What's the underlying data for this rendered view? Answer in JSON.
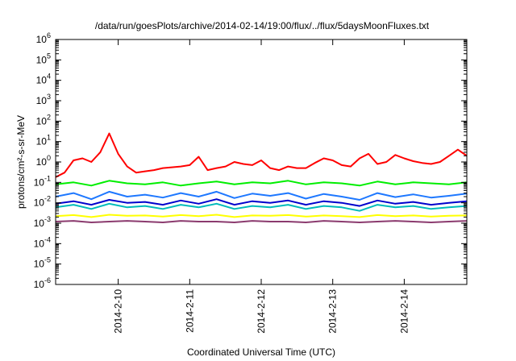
{
  "chart_data": {
    "type": "line",
    "title": "/data/run/goesPlots/archive/2014-02-14/19:00/flux/../flux/5daysMoonFluxes.txt",
    "xlabel": "Coordinated Universal Time (UTC)",
    "ylabel": "protons/cm²-s-sr-MeV",
    "y_scale": "log",
    "ylim_exponents": [
      -6,
      6
    ],
    "x_range": [
      "2014-02-09 03:00",
      "2014-02-14 21:00"
    ],
    "x_ticks": [
      "2014-2-10",
      "2014-2-11",
      "2014-2-12",
      "2014-2-13",
      "2014-2-14"
    ],
    "y_tick_exponents": [
      -6,
      -5,
      -4,
      -3,
      -2,
      -1,
      0,
      1,
      2,
      3,
      4,
      5,
      6
    ],
    "grid": false,
    "legend": "none",
    "series": [
      {
        "color": "#ff0000",
        "x": [
          "2014-02-09 03:00",
          "2014-02-09 06:00",
          "2014-02-09 09:00",
          "2014-02-09 12:00",
          "2014-02-09 15:00",
          "2014-02-09 18:00",
          "2014-02-09 21:00",
          "2014-02-10 00:00",
          "2014-02-10 03:00",
          "2014-02-10 06:00",
          "2014-02-10 09:00",
          "2014-02-10 12:00",
          "2014-02-10 15:00",
          "2014-02-10 18:00",
          "2014-02-10 21:00",
          "2014-02-11 00:00",
          "2014-02-11 03:00",
          "2014-02-11 06:00",
          "2014-02-11 09:00",
          "2014-02-11 12:00",
          "2014-02-11 15:00",
          "2014-02-11 18:00",
          "2014-02-11 21:00",
          "2014-02-12 00:00",
          "2014-02-12 03:00",
          "2014-02-12 06:00",
          "2014-02-12 09:00",
          "2014-02-12 12:00",
          "2014-02-12 15:00",
          "2014-02-12 18:00",
          "2014-02-12 21:00",
          "2014-02-13 00:00",
          "2014-02-13 03:00",
          "2014-02-13 06:00",
          "2014-02-13 09:00",
          "2014-02-13 12:00",
          "2014-02-13 15:00",
          "2014-02-13 18:00",
          "2014-02-13 21:00",
          "2014-02-14 00:00",
          "2014-02-14 03:00",
          "2014-02-14 06:00",
          "2014-02-14 09:00",
          "2014-02-14 12:00",
          "2014-02-14 15:00",
          "2014-02-14 18:00",
          "2014-02-14 21:00"
        ],
        "y": [
          0.18,
          0.3,
          1.2,
          1.5,
          1.0,
          3.0,
          25,
          2.5,
          0.6,
          0.3,
          0.35,
          0.4,
          0.5,
          0.55,
          0.6,
          0.7,
          1.8,
          0.4,
          0.5,
          0.6,
          1.0,
          0.8,
          0.7,
          1.2,
          0.5,
          0.4,
          0.6,
          0.5,
          0.5,
          0.9,
          1.5,
          1.2,
          0.7,
          0.6,
          1.5,
          2.5,
          0.8,
          1.0,
          2.2,
          1.5,
          1.1,
          0.9,
          0.8,
          1.0,
          2.0,
          4.0,
          2.0
        ]
      },
      {
        "color": "#00ee00",
        "x": [
          "2014-02-09 03:00",
          "2014-02-09 09:00",
          "2014-02-09 15:00",
          "2014-02-09 21:00",
          "2014-02-10 03:00",
          "2014-02-10 09:00",
          "2014-02-10 15:00",
          "2014-02-10 21:00",
          "2014-02-11 03:00",
          "2014-02-11 09:00",
          "2014-02-11 15:00",
          "2014-02-11 21:00",
          "2014-02-12 03:00",
          "2014-02-12 09:00",
          "2014-02-12 15:00",
          "2014-02-12 21:00",
          "2014-02-13 03:00",
          "2014-02-13 09:00",
          "2014-02-13 15:00",
          "2014-02-13 21:00",
          "2014-02-14 03:00",
          "2014-02-14 09:00",
          "2014-02-14 15:00",
          "2014-02-14 21:00"
        ],
        "y": [
          0.08,
          0.1,
          0.07,
          0.12,
          0.09,
          0.08,
          0.1,
          0.07,
          0.09,
          0.11,
          0.08,
          0.1,
          0.09,
          0.12,
          0.08,
          0.1,
          0.09,
          0.07,
          0.11,
          0.08,
          0.1,
          0.09,
          0.08,
          0.1
        ]
      },
      {
        "color": "#00bbbb",
        "x": [
          "2014-02-09 03:00",
          "2014-02-09 09:00",
          "2014-02-09 15:00",
          "2014-02-09 21:00",
          "2014-02-10 03:00",
          "2014-02-10 09:00",
          "2014-02-10 15:00",
          "2014-02-10 21:00",
          "2014-02-11 03:00",
          "2014-02-11 09:00",
          "2014-02-11 15:00",
          "2014-02-11 21:00",
          "2014-02-12 03:00",
          "2014-02-12 09:00",
          "2014-02-12 15:00",
          "2014-02-12 21:00",
          "2014-02-13 03:00",
          "2014-02-13 09:00",
          "2014-02-13 15:00",
          "2014-02-13 21:00",
          "2014-02-14 03:00",
          "2014-02-14 09:00",
          "2014-02-14 15:00",
          "2014-02-14 21:00"
        ],
        "y": [
          0.006,
          0.008,
          0.005,
          0.009,
          0.006,
          0.007,
          0.005,
          0.008,
          0.006,
          0.009,
          0.005,
          0.007,
          0.006,
          0.008,
          0.005,
          0.007,
          0.006,
          0.004,
          0.008,
          0.006,
          0.007,
          0.005,
          0.006,
          0.007
        ]
      },
      {
        "color": "#1e78ff",
        "x": [
          "2014-02-09 03:00",
          "2014-02-09 09:00",
          "2014-02-09 15:00",
          "2014-02-09 21:00",
          "2014-02-10 03:00",
          "2014-02-10 09:00",
          "2014-02-10 15:00",
          "2014-02-10 21:00",
          "2014-02-11 03:00",
          "2014-02-11 09:00",
          "2014-02-11 15:00",
          "2014-02-11 21:00",
          "2014-02-12 03:00",
          "2014-02-12 09:00",
          "2014-02-12 15:00",
          "2014-02-12 21:00",
          "2014-02-13 03:00",
          "2014-02-13 09:00",
          "2014-02-13 15:00",
          "2014-02-13 21:00",
          "2014-02-14 03:00",
          "2014-02-14 09:00",
          "2014-02-14 15:00",
          "2014-02-14 21:00"
        ],
        "y": [
          0.02,
          0.03,
          0.015,
          0.035,
          0.02,
          0.025,
          0.018,
          0.03,
          0.02,
          0.035,
          0.017,
          0.028,
          0.022,
          0.03,
          0.016,
          0.027,
          0.02,
          0.014,
          0.03,
          0.019,
          0.026,
          0.018,
          0.022,
          0.028
        ]
      },
      {
        "color": "#0000cc",
        "x": [
          "2014-02-09 03:00",
          "2014-02-09 09:00",
          "2014-02-09 15:00",
          "2014-02-09 21:00",
          "2014-02-10 03:00",
          "2014-02-10 09:00",
          "2014-02-10 15:00",
          "2014-02-10 21:00",
          "2014-02-11 03:00",
          "2014-02-11 09:00",
          "2014-02-11 15:00",
          "2014-02-11 21:00",
          "2014-02-12 03:00",
          "2014-02-12 09:00",
          "2014-02-12 15:00",
          "2014-02-12 21:00",
          "2014-02-13 03:00",
          "2014-02-13 09:00",
          "2014-02-13 15:00",
          "2014-02-13 21:00",
          "2014-02-14 03:00",
          "2014-02-14 09:00",
          "2014-02-14 15:00",
          "2014-02-14 21:00"
        ],
        "y": [
          0.009,
          0.012,
          0.008,
          0.014,
          0.01,
          0.011,
          0.008,
          0.013,
          0.009,
          0.015,
          0.008,
          0.012,
          0.01,
          0.013,
          0.008,
          0.012,
          0.01,
          0.007,
          0.013,
          0.009,
          0.011,
          0.008,
          0.01,
          0.012
        ]
      },
      {
        "color": "#ffff00",
        "x": [
          "2014-02-09 03:00",
          "2014-02-09 09:00",
          "2014-02-09 15:00",
          "2014-02-09 21:00",
          "2014-02-10 03:00",
          "2014-02-10 09:00",
          "2014-02-10 15:00",
          "2014-02-10 21:00",
          "2014-02-11 03:00",
          "2014-02-11 09:00",
          "2014-02-11 15:00",
          "2014-02-11 21:00",
          "2014-02-12 03:00",
          "2014-02-12 09:00",
          "2014-02-12 15:00",
          "2014-02-12 21:00",
          "2014-02-13 03:00",
          "2014-02-13 09:00",
          "2014-02-13 15:00",
          "2014-02-13 21:00",
          "2014-02-14 03:00",
          "2014-02-14 09:00",
          "2014-02-14 15:00",
          "2014-02-14 21:00"
        ],
        "y": [
          0.0022,
          0.0025,
          0.002,
          0.0026,
          0.0023,
          0.0024,
          0.0021,
          0.0025,
          0.0022,
          0.0026,
          0.002,
          0.0024,
          0.0023,
          0.0025,
          0.0021,
          0.0024,
          0.0022,
          0.002,
          0.0025,
          0.0022,
          0.0024,
          0.0021,
          0.0023,
          0.0024
        ]
      },
      {
        "color": "#8b3a6e",
        "x": [
          "2014-02-09 03:00",
          "2014-02-09 09:00",
          "2014-02-09 15:00",
          "2014-02-09 21:00",
          "2014-02-10 03:00",
          "2014-02-10 09:00",
          "2014-02-10 15:00",
          "2014-02-10 21:00",
          "2014-02-11 03:00",
          "2014-02-11 09:00",
          "2014-02-11 15:00",
          "2014-02-11 21:00",
          "2014-02-12 03:00",
          "2014-02-12 09:00",
          "2014-02-12 15:00",
          "2014-02-12 21:00",
          "2014-02-13 03:00",
          "2014-02-13 09:00",
          "2014-02-13 15:00",
          "2014-02-13 21:00",
          "2014-02-14 03:00",
          "2014-02-14 09:00",
          "2014-02-14 15:00",
          "2014-02-14 21:00"
        ],
        "y": [
          0.0012,
          0.0013,
          0.0011,
          0.0012,
          0.0013,
          0.0012,
          0.0011,
          0.0013,
          0.0012,
          0.0012,
          0.0011,
          0.0013,
          0.0012,
          0.0012,
          0.0011,
          0.0013,
          0.0012,
          0.0011,
          0.0012,
          0.0013,
          0.0012,
          0.0011,
          0.0012,
          0.0013
        ]
      }
    ]
  }
}
